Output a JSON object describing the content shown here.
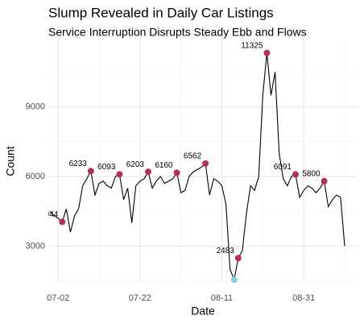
{
  "chart_data": {
    "type": "line",
    "title": "Slump Revealed in Daily Car Listings",
    "subtitle": "Service Interruption Disrupts Steady Ebb and Flows",
    "x_label": "Date",
    "y_label": "Count",
    "x": [
      "06-30",
      "07-01",
      "07-02",
      "07-03",
      "07-04",
      "07-05",
      "07-06",
      "07-07",
      "07-08",
      "07-09",
      "07-10",
      "07-11",
      "07-12",
      "07-13",
      "07-14",
      "07-15",
      "07-16",
      "07-17",
      "07-18",
      "07-19",
      "07-20",
      "07-21",
      "07-22",
      "07-23",
      "07-24",
      "07-25",
      "07-26",
      "07-27",
      "07-28",
      "07-29",
      "07-30",
      "07-31",
      "08-01",
      "08-02",
      "08-03",
      "08-04",
      "08-05",
      "08-06",
      "08-07",
      "08-08",
      "08-09",
      "08-10",
      "08-11",
      "08-12",
      "08-13",
      "08-14",
      "08-15",
      "08-16",
      "08-17",
      "08-18",
      "08-19",
      "08-20",
      "08-21",
      "08-22",
      "08-23",
      "08-24",
      "08-25",
      "08-26",
      "08-27",
      "08-28",
      "08-29",
      "08-30",
      "08-31",
      "09-01",
      "09-02",
      "09-03",
      "09-04",
      "09-05",
      "09-06",
      "09-07",
      "09-08",
      "09-09",
      "09-10"
    ],
    "series": [
      {
        "name": "Count",
        "color": "#000000",
        "values": [
          4500,
          4300,
          4200,
          4044,
          4600,
          3600,
          4300,
          4600,
          5600,
          5900,
          6233,
          5200,
          5700,
          5800,
          5600,
          5500,
          6000,
          6093,
          5000,
          5500,
          4000,
          5600,
          5800,
          5900,
          6203,
          5500,
          5800,
          6000,
          5700,
          5800,
          5900,
          6160,
          5300,
          5400,
          6000,
          6200,
          6300,
          6400,
          6562,
          5200,
          5900,
          5800,
          5600,
          4800,
          2000,
          1550,
          2483,
          2800,
          4400,
          5600,
          5400,
          6000,
          9500,
          11325,
          9500,
          10500,
          7000,
          5900,
          5600,
          6000,
          6091,
          5100,
          5400,
          5600,
          5500,
          5300,
          5500,
          5800,
          4700,
          5000,
          5200,
          5100,
          3000
        ],
        "value_labels": [
          null,
          null,
          null,
          "4044",
          null,
          null,
          null,
          null,
          null,
          null,
          "6233",
          null,
          null,
          null,
          null,
          null,
          null,
          "6093",
          null,
          null,
          null,
          null,
          null,
          null,
          "6203",
          null,
          null,
          null,
          null,
          null,
          null,
          "6160",
          null,
          null,
          null,
          null,
          null,
          null,
          "6562",
          null,
          null,
          null,
          null,
          null,
          null,
          null,
          "2483",
          null,
          null,
          null,
          null,
          null,
          null,
          "11325",
          null,
          null,
          null,
          null,
          null,
          null,
          "6091",
          null,
          null,
          null,
          null,
          null,
          null,
          "5800",
          null,
          null,
          null,
          null,
          null
        ]
      }
    ],
    "highlight_color": "#b03060",
    "min_color": "#87ceeb",
    "xlim": [
      "06-30",
      "09-10"
    ],
    "xticks": [
      "07-02",
      "07-22",
      "08-11",
      "08-31"
    ],
    "ylim": [
      1450,
      11800
    ],
    "yticks": [
      3000,
      6000,
      9000
    ],
    "grid": true,
    "minor_grid": true
  }
}
